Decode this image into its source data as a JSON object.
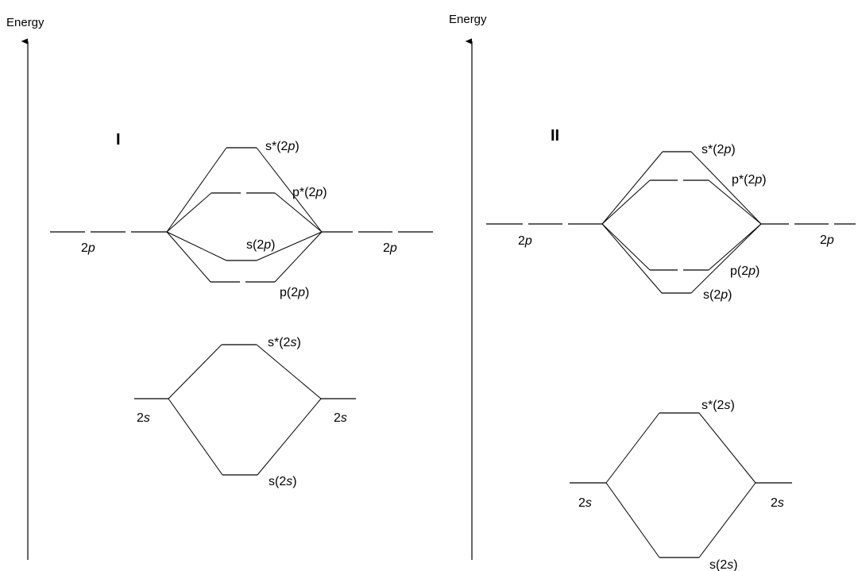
{
  "axis_label": "Energy",
  "diagrams": [
    {
      "title": "I",
      "labels": {
        "ao_2p_left": [
          "2",
          "p"
        ],
        "ao_2p_right": [
          "2",
          "p"
        ],
        "ao_2s_left": [
          "2",
          "s"
        ],
        "ao_2s_right": [
          "2",
          "s"
        ],
        "sigma_star_2p": [
          "s*(2",
          "p",
          ")"
        ],
        "pi_star_2p": [
          "p*(2",
          "p",
          ")"
        ],
        "sigma_2p": [
          "s(2",
          "p",
          ")"
        ],
        "pi_2p": [
          "p(2",
          "p",
          ")"
        ],
        "sigma_star_2s": [
          "s*(2",
          "s",
          ")"
        ],
        "sigma_2s": [
          "s(2",
          "s",
          ")"
        ]
      }
    },
    {
      "title": "II",
      "labels": {
        "ao_2p_left": [
          "2",
          "p"
        ],
        "ao_2p_right": [
          "2",
          "p"
        ],
        "ao_2s_left": [
          "2",
          "s"
        ],
        "ao_2s_right": [
          "2",
          "s"
        ],
        "sigma_star_2p": [
          "s*(2",
          "p",
          ")"
        ],
        "pi_star_2p": [
          "p*(2",
          "p",
          ")"
        ],
        "pi_2p": [
          "p(2",
          "p",
          ")"
        ],
        "sigma_2p": [
          "s(2",
          "p",
          ")"
        ],
        "sigma_star_2s": [
          "s*(2",
          "s",
          ")"
        ],
        "sigma_2s": [
          "s(2",
          "s",
          ")"
        ]
      }
    }
  ]
}
